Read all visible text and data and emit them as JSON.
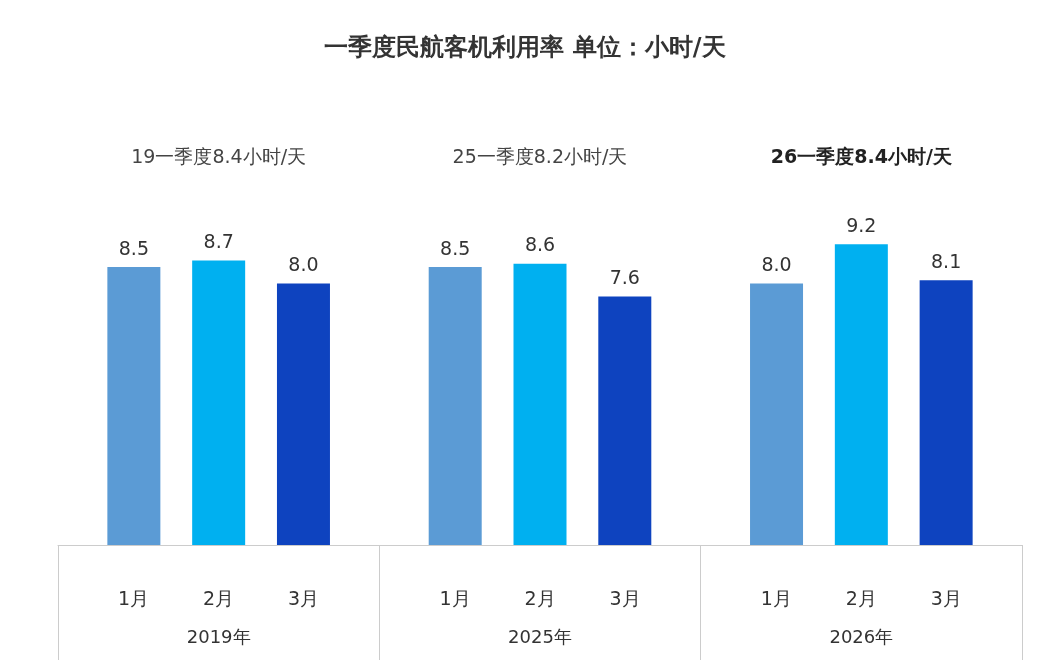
{
  "chart_data": {
    "type": "bar",
    "title": "一季度民航客机利用率 单位：小时/天",
    "categories": [
      "2019年",
      "2025年",
      "2026年"
    ],
    "series": [
      {
        "name": "1月",
        "color": "#5b9bd5",
        "values": [
          8.5,
          8.5,
          8.0
        ],
        "value_labels": [
          "8.5",
          "8.5",
          "8.0"
        ]
      },
      {
        "name": "2月",
        "color": "#00b0f0",
        "values": [
          8.7,
          8.6,
          9.2
        ],
        "value_labels": [
          "8.7",
          "8.6",
          "9.2"
        ]
      },
      {
        "name": "3月",
        "color": "#0e43bf",
        "values": [
          8.0,
          7.6,
          8.1
        ],
        "value_labels": [
          "8.0",
          "7.6",
          "8.1"
        ]
      }
    ],
    "annotations": [
      "19一季度8.4小时/天",
      "25一季度8.2小时/天",
      "26一季度8.4小时/天"
    ]
  }
}
